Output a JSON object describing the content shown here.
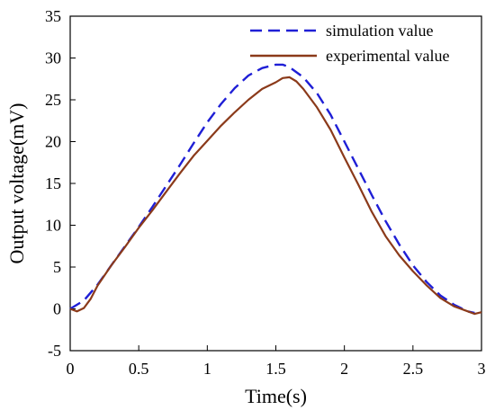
{
  "chart_data": {
    "type": "line",
    "xlabel": "Time(s)",
    "ylabel": "Output voltage(mV)",
    "xlim": [
      0,
      3
    ],
    "ylim": [
      -5,
      35
    ],
    "xticks": [
      0,
      0.5,
      1,
      1.5,
      2,
      2.5,
      3
    ],
    "xtick_labels": [
      "0",
      "0.5",
      "1",
      "1.5",
      "2",
      "2.5",
      "3"
    ],
    "yticks": [
      -5,
      0,
      5,
      10,
      15,
      20,
      25,
      30,
      35
    ],
    "ytick_labels": [
      "-5",
      "0",
      "5",
      "10",
      "15",
      "20",
      "25",
      "30",
      "35"
    ],
    "grid": false,
    "legend_position": "top-right",
    "series": [
      {
        "name": "simulation value",
        "color": "#1f1fd6",
        "style": "dashed",
        "x": [
          0,
          0.1,
          0.2,
          0.3,
          0.4,
          0.5,
          0.6,
          0.7,
          0.8,
          0.9,
          1.0,
          1.1,
          1.2,
          1.3,
          1.4,
          1.5,
          1.55,
          1.6,
          1.7,
          1.8,
          1.9,
          2.0,
          2.1,
          2.2,
          2.3,
          2.4,
          2.5,
          2.6,
          2.7,
          2.8,
          2.9,
          2.95
        ],
        "y": [
          0,
          1.0,
          2.9,
          5.2,
          7.5,
          9.8,
          12.2,
          14.7,
          17.2,
          19.8,
          22.3,
          24.5,
          26.4,
          27.9,
          28.8,
          29.2,
          29.2,
          28.9,
          27.7,
          25.8,
          23.2,
          20.0,
          16.8,
          13.6,
          10.5,
          7.7,
          5.2,
          3.2,
          1.6,
          0.5,
          -0.3,
          -0.5
        ]
      },
      {
        "name": "experimental value",
        "color": "#8b3a1a",
        "style": "solid",
        "x": [
          0,
          0.05,
          0.1,
          0.15,
          0.2,
          0.3,
          0.4,
          0.5,
          0.6,
          0.7,
          0.8,
          0.9,
          1.0,
          1.1,
          1.2,
          1.3,
          1.4,
          1.5,
          1.55,
          1.6,
          1.65,
          1.7,
          1.8,
          1.9,
          2.0,
          2.1,
          2.2,
          2.3,
          2.4,
          2.5,
          2.6,
          2.7,
          2.8,
          2.9,
          2.95,
          3.0
        ],
        "y": [
          0,
          -0.3,
          0.1,
          1.2,
          2.8,
          5.2,
          7.4,
          9.7,
          11.8,
          14.0,
          16.2,
          18.3,
          20.1,
          21.9,
          23.5,
          25.0,
          26.3,
          27.1,
          27.6,
          27.7,
          27.2,
          26.3,
          24.1,
          21.4,
          18.1,
          14.9,
          11.6,
          8.7,
          6.4,
          4.5,
          2.8,
          1.3,
          0.3,
          -0.3,
          -0.6,
          -0.4
        ]
      }
    ]
  }
}
